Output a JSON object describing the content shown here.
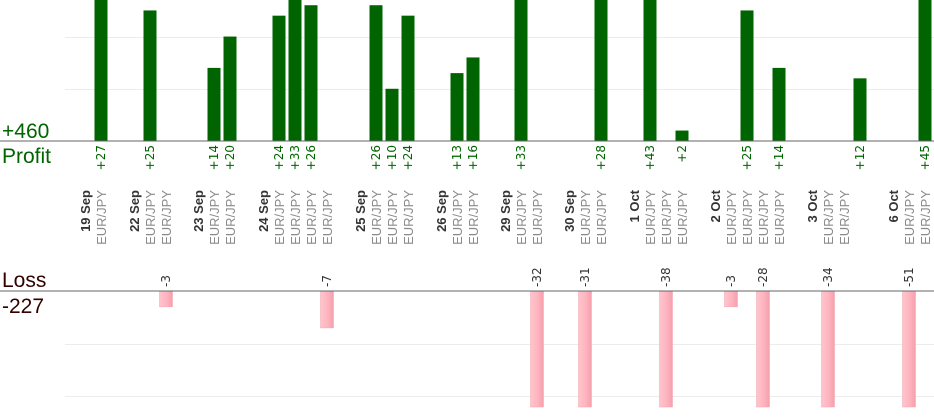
{
  "summary": {
    "profit_total": "+460",
    "profit_label": "Profit",
    "loss_label": "Loss",
    "loss_total": "-227"
  },
  "colors": {
    "profit_bar": "#006400",
    "profit_text": "#006400",
    "loss_bar": "#ffb6c1",
    "loss_text": "#333333",
    "total_profit_text": "#006400",
    "total_loss_text": "#330000"
  },
  "chart_data": {
    "type": "bar",
    "pair": "EUR/JPY",
    "dates": [
      "19 Sep",
      "22 Sep",
      "23 Sep",
      "24 Sep",
      "25 Sep",
      "26 Sep",
      "29 Sep",
      "30 Sep",
      "1 Oct",
      "2 Oct",
      "3 Oct",
      "6 Oct"
    ],
    "trades": [
      {
        "date": "19 Sep",
        "value": 27,
        "label": "+27"
      },
      {
        "date": "22 Sep",
        "value": -3,
        "label": "-3"
      },
      {
        "date": "22 Sep",
        "value": 25,
        "label": "+25"
      },
      {
        "date": "23 Sep",
        "value": 14,
        "label": "+14"
      },
      {
        "date": "23 Sep",
        "value": 20,
        "label": "+20"
      },
      {
        "date": "24 Sep",
        "value": 24,
        "label": "+24"
      },
      {
        "date": "24 Sep",
        "value": 33,
        "label": "+33"
      },
      {
        "date": "24 Sep",
        "value": 26,
        "label": "+26"
      },
      {
        "date": "24 Sep",
        "value": -7,
        "label": "-7"
      },
      {
        "date": "25 Sep",
        "value": 26,
        "label": "+26"
      },
      {
        "date": "25 Sep",
        "value": 10,
        "label": "+10"
      },
      {
        "date": "25 Sep",
        "value": 24,
        "label": "+24"
      },
      {
        "date": "26 Sep",
        "value": 13,
        "label": "+13"
      },
      {
        "date": "26 Sep",
        "value": 16,
        "label": "+16"
      },
      {
        "date": "29 Sep",
        "value": 33,
        "label": "+33"
      },
      {
        "date": "29 Sep",
        "value": -32,
        "label": "-32"
      },
      {
        "date": "30 Sep",
        "value": -31,
        "label": "-31"
      },
      {
        "date": "30 Sep",
        "value": 28,
        "label": "+28"
      },
      {
        "date": "1 Oct",
        "value": -38,
        "label": "-38"
      },
      {
        "date": "1 Oct",
        "value": 43,
        "label": "+43"
      },
      {
        "date": "1 Oct",
        "value": 2,
        "label": "+2"
      },
      {
        "date": "2 Oct",
        "value": -3,
        "label": "-3"
      },
      {
        "date": "2 Oct",
        "value": 25,
        "label": "+25"
      },
      {
        "date": "2 Oct",
        "value": -28,
        "label": "-28"
      },
      {
        "date": "2 Oct",
        "value": 14,
        "label": "+14"
      },
      {
        "date": "3 Oct",
        "value": -34,
        "label": "-34"
      },
      {
        "date": "3 Oct",
        "value": 12,
        "label": "+12"
      },
      {
        "date": "6 Oct",
        "value": -51,
        "label": "-51"
      },
      {
        "date": "6 Oct",
        "value": 45,
        "label": "+45"
      }
    ],
    "profit_axis": {
      "min": 0,
      "max": 27,
      "gridlines": [
        10,
        20
      ]
    },
    "loss_axis": {
      "min": -22,
      "max": 0,
      "gridlines": [
        -10,
        -20
      ]
    },
    "grid": true,
    "legend": "none"
  }
}
